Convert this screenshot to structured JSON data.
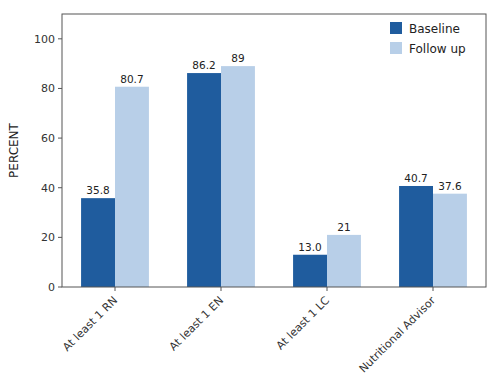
{
  "chart_data": {
    "type": "bar",
    "ylabel": "PERCENT",
    "categories": [
      "At least 1 RN",
      "At least 1 EN",
      "At least 1 LC",
      "Nutritional Advisor"
    ],
    "series": [
      {
        "name": "Baseline",
        "color": "#1f5c9e",
        "values": [
          35.8,
          86.2,
          13.0,
          40.7
        ],
        "value_labels": [
          "35.8",
          "86.2",
          "13.0",
          "40.7"
        ]
      },
      {
        "name": "Follow up",
        "color": "#b8cfe8",
        "values": [
          80.7,
          89,
          21,
          37.6
        ]
      }
    ],
    "ylim": [
      0,
      110
    ],
    "yticks": [
      0,
      20,
      40,
      60,
      80,
      100
    ],
    "grid": false,
    "legend": "upper right",
    "data_labels": true
  }
}
